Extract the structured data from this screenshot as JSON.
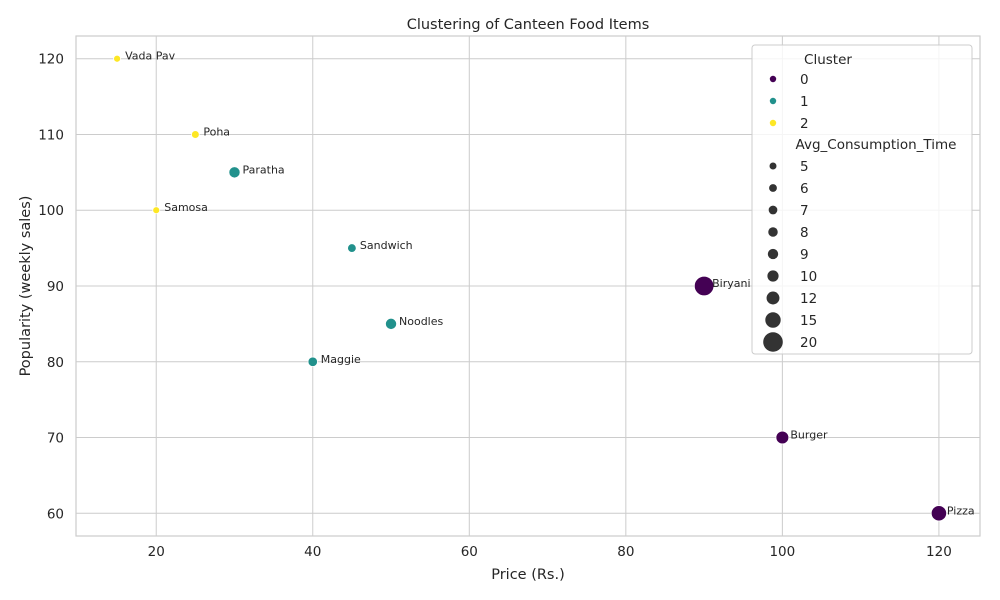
{
  "chart_data": {
    "type": "scatter",
    "title": "Clustering of Canteen Food Items",
    "xlabel": "Price (Rs.)",
    "ylabel": "Popularity (weekly sales)",
    "xlim": [
      9.75,
      125.25
    ],
    "ylim": [
      57,
      123
    ],
    "xticks": [
      20,
      40,
      60,
      80,
      100,
      120
    ],
    "yticks": [
      60,
      70,
      80,
      90,
      100,
      110,
      120
    ],
    "grid": true,
    "legend_placement": "top-right",
    "cluster_colors": {
      "0": "#440154",
      "1": "#21918c",
      "2": "#fde725"
    },
    "points": [
      {
        "label": "Vada Pav",
        "x": 15,
        "y": 120,
        "cluster": 2,
        "size": 5
      },
      {
        "label": "Poha",
        "x": 25,
        "y": 110,
        "cluster": 2,
        "size": 6
      },
      {
        "label": "Paratha",
        "x": 30,
        "y": 105,
        "cluster": 1,
        "size": 10
      },
      {
        "label": "Samosa",
        "x": 20,
        "y": 100,
        "cluster": 2,
        "size": 5
      },
      {
        "label": "Sandwich",
        "x": 45,
        "y": 95,
        "cluster": 1,
        "size": 7
      },
      {
        "label": "Biryani",
        "x": 90,
        "y": 90,
        "cluster": 0,
        "size": 20
      },
      {
        "label": "Noodles",
        "x": 50,
        "y": 85,
        "cluster": 1,
        "size": 10
      },
      {
        "label": "Maggie",
        "x": 40,
        "y": 80,
        "cluster": 1,
        "size": 8
      },
      {
        "label": "Burger",
        "x": 100,
        "y": 70,
        "cluster": 0,
        "size": 12
      },
      {
        "label": "Pizza",
        "x": 120,
        "y": 60,
        "cluster": 0,
        "size": 15
      }
    ],
    "legend": {
      "hue_title": "Cluster",
      "hue_entries": [
        {
          "label": "0",
          "color": "#440154"
        },
        {
          "label": "1",
          "color": "#21918c"
        },
        {
          "label": "2",
          "color": "#fde725"
        }
      ],
      "size_title": "Avg_Consumption_Time",
      "size_entries": [
        "5",
        "6",
        "7",
        "8",
        "9",
        "10",
        "12",
        "15",
        "20"
      ]
    }
  }
}
